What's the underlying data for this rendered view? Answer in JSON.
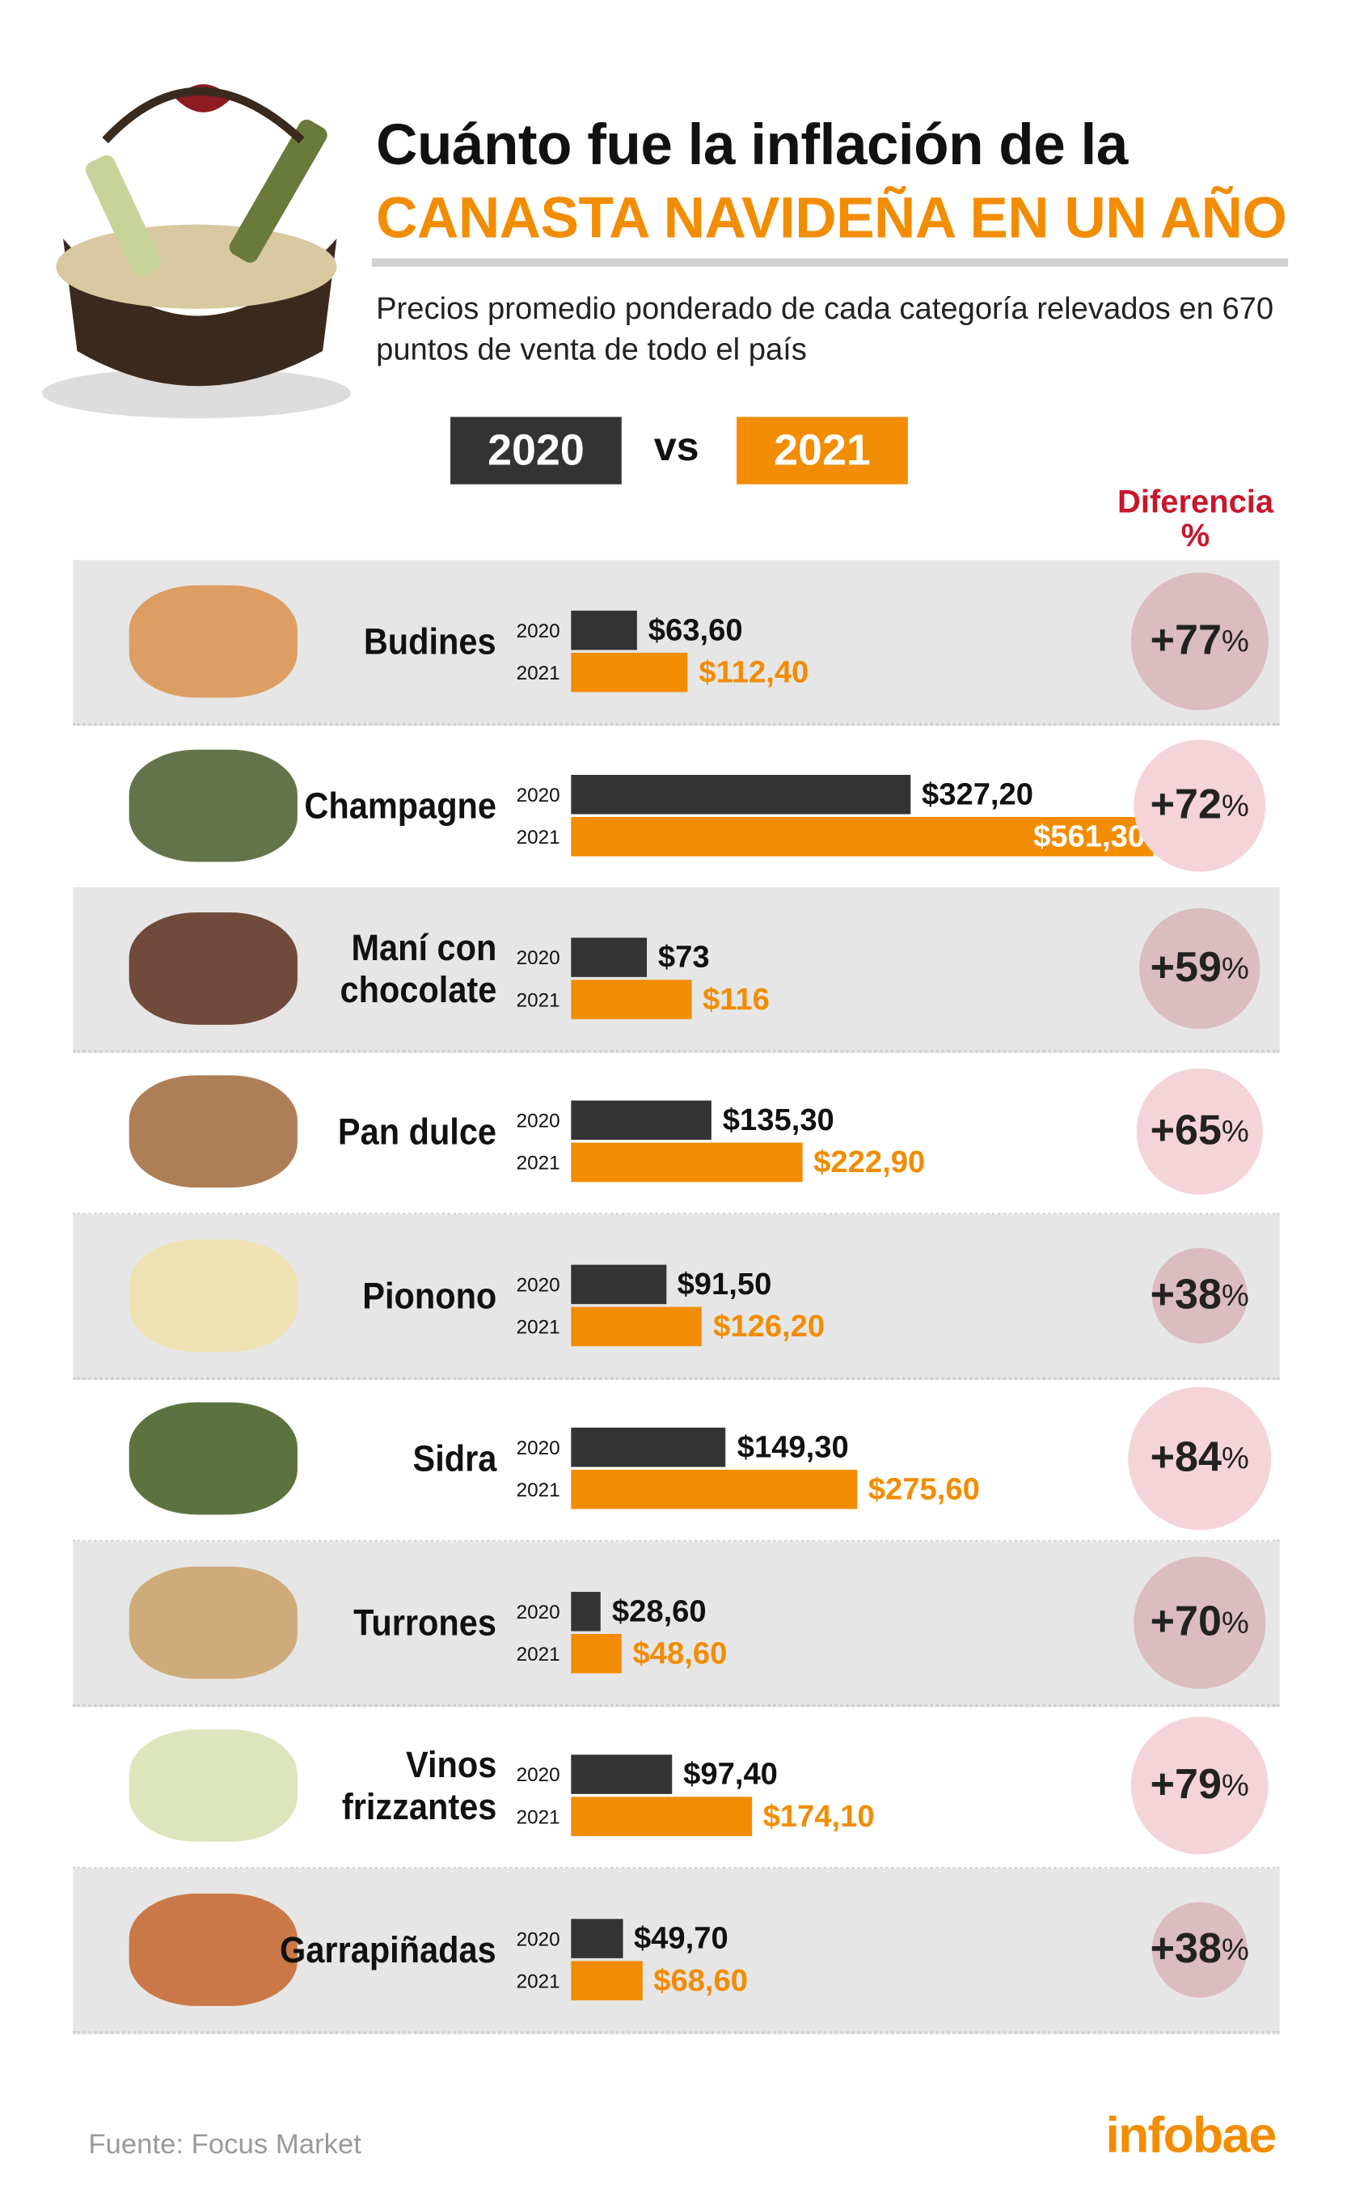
{
  "header": {
    "title_line1": "Cuánto fue la inflación de la",
    "title_line2": "CANASTA NAVIDEÑA EN UN AÑO",
    "subtitle": "Precios promedio ponderado de cada categoría relevados en 670 puntos de venta de todo el país",
    "legend_2020": "2020",
    "legend_vs": "vs",
    "legend_2021": "2021",
    "diff_label_1": "Diferencia",
    "diff_label_2": "%"
  },
  "colors": {
    "y2020": "#333333",
    "y2021": "#f28c00",
    "diff": "#c8162b"
  },
  "chart_data": {
    "type": "bar",
    "title": "Cuánto fue la inflación de la CANASTA NAVIDEÑA EN UN AÑO",
    "series_names": [
      "2020",
      "2021"
    ],
    "rows": [
      {
        "name": "Budines",
        "v2020": 63.6,
        "v2021": 112.4,
        "l2020": "$63,60",
        "l2021": "$112,40",
        "pct": 77,
        "pct_label": "+77"
      },
      {
        "name": "Champagne",
        "v2020": 327.2,
        "v2021": 561.3,
        "l2020": "$327,20",
        "l2021": "$561,30",
        "pct": 72,
        "pct_label": "+72"
      },
      {
        "name": "Maní con chocolate",
        "v2020": 73,
        "v2021": 116,
        "l2020": "$73",
        "l2021": "$116",
        "pct": 59,
        "pct_label": "+59"
      },
      {
        "name": "Pan dulce",
        "v2020": 135.3,
        "v2021": 222.9,
        "l2020": "$135,30",
        "l2021": "$222,90",
        "pct": 65,
        "pct_label": "+65"
      },
      {
        "name": "Pionono",
        "v2020": 91.5,
        "v2021": 126.2,
        "l2020": "$91,50",
        "l2021": "$126,20",
        "pct": 38,
        "pct_label": "+38"
      },
      {
        "name": "Sidra",
        "v2020": 149.3,
        "v2021": 275.6,
        "l2020": "$149,30",
        "l2021": "$275,60",
        "pct": 84,
        "pct_label": "+84"
      },
      {
        "name": "Turrones",
        "v2020": 28.6,
        "v2021": 48.6,
        "l2020": "$28,60",
        "l2021": "$48,60",
        "pct": 70,
        "pct_label": "+70"
      },
      {
        "name": "Vinos frizzantes",
        "v2020": 97.4,
        "v2021": 174.1,
        "l2020": "$97,40",
        "l2021": "$174,10",
        "pct": 79,
        "pct_label": "+79"
      },
      {
        "name": "Garrapiñadas",
        "v2020": 49.7,
        "v2021": 68.6,
        "l2020": "$49,70",
        "l2021": "$68,60",
        "pct": 38,
        "pct_label": "+38"
      }
    ],
    "year_labels": [
      "2020",
      "2021"
    ],
    "pct_suffix": "%"
  },
  "footer": {
    "source": "Fuente: Focus Market",
    "logo": "infobae"
  }
}
